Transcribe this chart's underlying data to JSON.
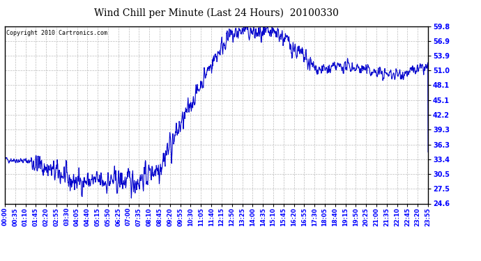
{
  "title": "Wind Chill per Minute (Last 24 Hours)  20100330",
  "copyright_text": "Copyright 2010 Cartronics.com",
  "line_color": "#0000CC",
  "background_color": "#ffffff",
  "plot_bg_color": "#ffffff",
  "grid_color": "#bbbbbb",
  "y_ticks": [
    24.6,
    27.5,
    30.5,
    33.4,
    36.3,
    39.3,
    42.2,
    45.1,
    48.1,
    51.0,
    53.9,
    56.9,
    59.8
  ],
  "y_min": 24.6,
  "y_max": 59.8,
  "x_tick_labels": [
    "00:00",
    "00:35",
    "01:10",
    "01:45",
    "02:20",
    "02:55",
    "03:30",
    "04:05",
    "04:40",
    "05:15",
    "05:50",
    "06:25",
    "07:00",
    "07:35",
    "08:10",
    "08:45",
    "09:20",
    "09:55",
    "10:30",
    "11:05",
    "11:40",
    "12:15",
    "12:50",
    "13:25",
    "14:00",
    "14:35",
    "15:10",
    "15:45",
    "16:20",
    "16:55",
    "17:30",
    "18:05",
    "18:40",
    "19:15",
    "19:50",
    "20:25",
    "21:00",
    "21:35",
    "22:10",
    "22:45",
    "23:20",
    "23:55"
  ],
  "num_points": 1440
}
